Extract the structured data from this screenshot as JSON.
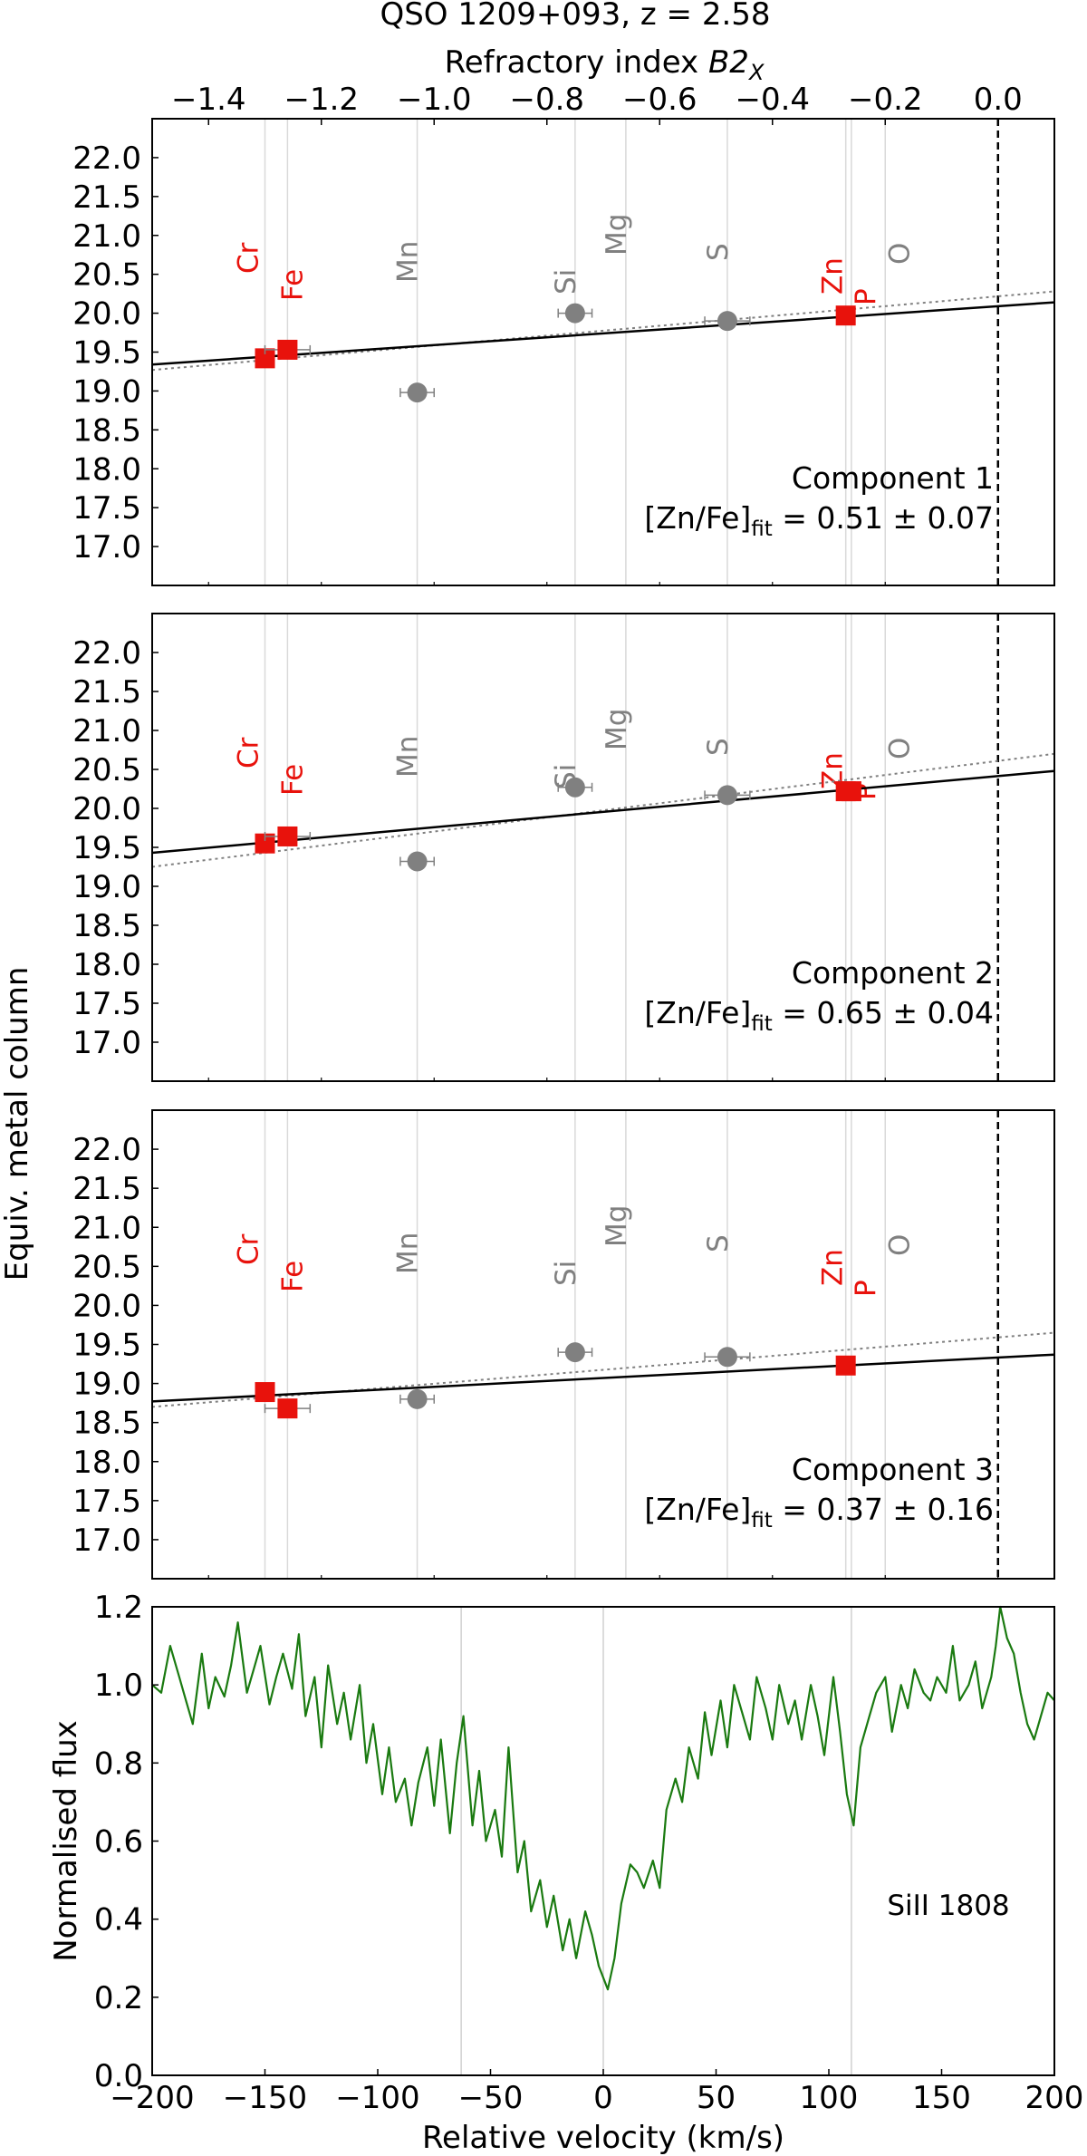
{
  "figure": {
    "title": "QSO 1209+093, z = 2.58",
    "top_axis_label_prefix": "Refractory index ",
    "top_axis_label_var": "B2",
    "top_axis_label_sub": "X",
    "shared_ylabel": "Equiv. metal column"
  },
  "chart_data": [
    {
      "type": "scatter",
      "panel": "Component 1",
      "xlim": [
        -1.5,
        0.1
      ],
      "ylim": [
        16.5,
        22.5
      ],
      "x_ticks": [
        -1.4,
        -1.2,
        -1.0,
        -0.8,
        -0.6,
        -0.4,
        -0.2,
        0.0
      ],
      "x_tick_labels": [
        "−1.4",
        "−1.2",
        "−1.0",
        "−0.8",
        "−0.6",
        "−0.4",
        "−0.2",
        "0.0"
      ],
      "y_ticks": [
        17.0,
        17.5,
        18.0,
        18.5,
        19.0,
        19.5,
        20.0,
        20.5,
        21.0,
        21.5,
        22.0
      ],
      "y_tick_labels": [
        "17.0",
        "17.5",
        "18.0",
        "18.5",
        "19.0",
        "19.5",
        "20.0",
        "20.5",
        "21.0",
        "21.5",
        "22.0"
      ],
      "element_lines": [
        {
          "name": "Cr",
          "x": -1.3,
          "color": "#e8120c"
        },
        {
          "name": "Fe",
          "x": -1.26,
          "color": "#e8120c"
        },
        {
          "name": "Mn",
          "x": -1.03,
          "color": "#808080"
        },
        {
          "name": "Si",
          "x": -0.75,
          "color": "#808080"
        },
        {
          "name": "Mg",
          "x": -0.66,
          "color": "#808080"
        },
        {
          "name": "S",
          "x": -0.48,
          "color": "#808080"
        },
        {
          "name": "Zn",
          "x": -0.27,
          "color": "#e8120c"
        },
        {
          "name": "P",
          "x": -0.26,
          "color": "#e8120c"
        },
        {
          "name": "O",
          "x": -0.2,
          "color": "#808080"
        }
      ],
      "points": [
        {
          "element": "Cr",
          "x": -1.3,
          "y": 19.42,
          "xerr": 0.0,
          "marker": "square",
          "color": "#e8120c"
        },
        {
          "element": "Fe",
          "x": -1.26,
          "y": 19.53,
          "xerr": 0.04,
          "marker": "square",
          "color": "#e8120c"
        },
        {
          "element": "Mn",
          "x": -1.03,
          "y": 18.98,
          "xerr": 0.03,
          "marker": "circle",
          "color": "#808080"
        },
        {
          "element": "Si",
          "x": -0.75,
          "y": 20.0,
          "xerr": 0.03,
          "marker": "circle",
          "color": "#808080"
        },
        {
          "element": "S",
          "x": -0.48,
          "y": 19.9,
          "xerr": 0.04,
          "marker": "circle",
          "color": "#808080"
        },
        {
          "element": "Zn",
          "x": -0.27,
          "y": 19.97,
          "xerr": 0.0,
          "marker": "square",
          "color": "#e8120c"
        }
      ],
      "fit_line": {
        "x": [
          -1.5,
          0.1
        ],
        "y": [
          19.34,
          20.14
        ]
      },
      "dotted_line": {
        "x": [
          -1.5,
          0.1
        ],
        "y": [
          19.27,
          20.28
        ]
      },
      "annotation": {
        "title": "Component 1",
        "text_prefix": "[Zn/Fe]",
        "text_sub": "fit",
        "text_value": " = 0.51 ± 0.07"
      }
    },
    {
      "type": "scatter",
      "panel": "Component 2",
      "xlim": [
        -1.5,
        0.1
      ],
      "ylim": [
        16.5,
        22.5
      ],
      "x_ticks": [
        -1.4,
        -1.2,
        -1.0,
        -0.8,
        -0.6,
        -0.4,
        -0.2,
        0.0
      ],
      "y_ticks": [
        17.0,
        17.5,
        18.0,
        18.5,
        19.0,
        19.5,
        20.0,
        20.5,
        21.0,
        21.5,
        22.0
      ],
      "y_tick_labels": [
        "17.0",
        "17.5",
        "18.0",
        "18.5",
        "19.0",
        "19.5",
        "20.0",
        "20.5",
        "21.0",
        "21.5",
        "22.0"
      ],
      "element_lines": [
        {
          "name": "Cr",
          "x": -1.3,
          "color": "#e8120c"
        },
        {
          "name": "Fe",
          "x": -1.26,
          "color": "#e8120c"
        },
        {
          "name": "Mn",
          "x": -1.03,
          "color": "#808080"
        },
        {
          "name": "Si",
          "x": -0.75,
          "color": "#808080"
        },
        {
          "name": "Mg",
          "x": -0.66,
          "color": "#808080"
        },
        {
          "name": "S",
          "x": -0.48,
          "color": "#808080"
        },
        {
          "name": "Zn",
          "x": -0.27,
          "color": "#e8120c"
        },
        {
          "name": "P",
          "x": -0.26,
          "color": "#e8120c"
        },
        {
          "name": "O",
          "x": -0.2,
          "color": "#808080"
        }
      ],
      "points": [
        {
          "element": "Cr",
          "x": -1.3,
          "y": 19.55,
          "xerr": 0.0,
          "marker": "square",
          "color": "#e8120c"
        },
        {
          "element": "Fe",
          "x": -1.26,
          "y": 19.64,
          "xerr": 0.04,
          "marker": "square",
          "color": "#e8120c"
        },
        {
          "element": "Mn",
          "x": -1.03,
          "y": 19.32,
          "xerr": 0.03,
          "marker": "circle",
          "color": "#808080"
        },
        {
          "element": "Si",
          "x": -0.75,
          "y": 20.27,
          "xerr": 0.03,
          "marker": "circle",
          "color": "#808080"
        },
        {
          "element": "S",
          "x": -0.48,
          "y": 20.17,
          "xerr": 0.04,
          "marker": "circle",
          "color": "#808080"
        },
        {
          "element": "Zn",
          "x": -0.27,
          "y": 20.22,
          "xerr": 0.0,
          "marker": "square",
          "color": "#e8120c"
        },
        {
          "element": "P",
          "x": -0.26,
          "y": 20.22,
          "xerr": 0.0,
          "marker": "square",
          "color": "#e8120c"
        }
      ],
      "fit_line": {
        "x": [
          -1.5,
          0.1
        ],
        "y": [
          19.43,
          20.48
        ]
      },
      "dotted_line": {
        "x": [
          -1.5,
          0.1
        ],
        "y": [
          19.25,
          20.7
        ]
      },
      "annotation": {
        "title": "Component 2",
        "text_prefix": "[Zn/Fe]",
        "text_sub": "fit",
        "text_value": " = 0.65 ± 0.04"
      }
    },
    {
      "type": "scatter",
      "panel": "Component 3",
      "xlim": [
        -1.5,
        0.1
      ],
      "ylim": [
        16.5,
        22.5
      ],
      "x_ticks": [
        -1.4,
        -1.2,
        -1.0,
        -0.8,
        -0.6,
        -0.4,
        -0.2,
        0.0
      ],
      "y_ticks": [
        17.0,
        17.5,
        18.0,
        18.5,
        19.0,
        19.5,
        20.0,
        20.5,
        21.0,
        21.5,
        22.0
      ],
      "y_tick_labels": [
        "17.0",
        "17.5",
        "18.0",
        "18.5",
        "19.0",
        "19.5",
        "20.0",
        "20.5",
        "21.0",
        "21.5",
        "22.0"
      ],
      "element_lines": [
        {
          "name": "Cr",
          "x": -1.3,
          "color": "#e8120c"
        },
        {
          "name": "Fe",
          "x": -1.26,
          "color": "#e8120c"
        },
        {
          "name": "Mn",
          "x": -1.03,
          "color": "#808080"
        },
        {
          "name": "Si",
          "x": -0.75,
          "color": "#808080"
        },
        {
          "name": "Mg",
          "x": -0.66,
          "color": "#808080"
        },
        {
          "name": "S",
          "x": -0.48,
          "color": "#808080"
        },
        {
          "name": "Zn",
          "x": -0.27,
          "color": "#e8120c"
        },
        {
          "name": "P",
          "x": -0.26,
          "color": "#e8120c"
        },
        {
          "name": "O",
          "x": -0.2,
          "color": "#808080"
        }
      ],
      "points": [
        {
          "element": "Cr",
          "x": -1.3,
          "y": 18.89,
          "xerr": 0.0,
          "marker": "square",
          "color": "#e8120c"
        },
        {
          "element": "Fe",
          "x": -1.26,
          "y": 18.68,
          "xerr": 0.04,
          "marker": "square",
          "color": "#e8120c"
        },
        {
          "element": "Mn",
          "x": -1.03,
          "y": 18.8,
          "xerr": 0.03,
          "marker": "circle",
          "color": "#808080"
        },
        {
          "element": "Si",
          "x": -0.75,
          "y": 19.4,
          "xerr": 0.03,
          "marker": "circle",
          "color": "#808080"
        },
        {
          "element": "S",
          "x": -0.48,
          "y": 19.34,
          "xerr": 0.04,
          "marker": "circle",
          "color": "#808080"
        },
        {
          "element": "Zn",
          "x": -0.27,
          "y": 19.23,
          "xerr": 0.0,
          "marker": "square",
          "color": "#e8120c"
        }
      ],
      "fit_line": {
        "x": [
          -1.5,
          0.1
        ],
        "y": [
          18.77,
          19.37
        ]
      },
      "dotted_line": {
        "x": [
          -1.5,
          0.1
        ],
        "y": [
          18.7,
          19.65
        ]
      },
      "annotation": {
        "title": "Component 3",
        "text_prefix": "[Zn/Fe]",
        "text_sub": "fit",
        "text_value": " = 0.37 ± 0.16"
      }
    },
    {
      "type": "line",
      "panel": "SiII 1808",
      "label": "SiII 1808",
      "xlabel": "Relative velocity (km/s)",
      "ylabel": "Normalised flux",
      "xlim": [
        -200,
        200
      ],
      "ylim": [
        0.0,
        1.2
      ],
      "x_ticks": [
        -200,
        -150,
        -100,
        -50,
        0,
        50,
        100,
        150,
        200
      ],
      "x_tick_labels": [
        "−200",
        "−150",
        "−100",
        "−50",
        "0",
        "50",
        "100",
        "150",
        "200"
      ],
      "y_ticks": [
        0.0,
        0.2,
        0.4,
        0.6,
        0.8,
        1.0,
        1.2
      ],
      "y_tick_labels": [
        "0.0",
        "0.2",
        "0.4",
        "0.6",
        "0.8",
        "1.0",
        "1.2"
      ],
      "component_lines": [
        -63,
        0,
        110
      ],
      "color": "#1a7a10",
      "x": [
        -200,
        -196,
        -192,
        -188,
        -185,
        -182,
        -178,
        -175,
        -172,
        -168,
        -165,
        -162,
        -158,
        -155,
        -152,
        -148,
        -145,
        -142,
        -138,
        -135,
        -132,
        -128,
        -125,
        -122,
        -118,
        -115,
        -112,
        -108,
        -105,
        -102,
        -98,
        -95,
        -92,
        -88,
        -85,
        -82,
        -78,
        -75,
        -72,
        -68,
        -65,
        -62,
        -58,
        -55,
        -52,
        -48,
        -45,
        -42,
        -38,
        -35,
        -32,
        -28,
        -25,
        -22,
        -18,
        -15,
        -12,
        -8,
        -5,
        -2,
        2,
        5,
        8,
        12,
        15,
        18,
        22,
        25,
        28,
        32,
        35,
        38,
        42,
        45,
        48,
        52,
        55,
        58,
        62,
        65,
        68,
        72,
        75,
        78,
        82,
        85,
        88,
        92,
        95,
        98,
        102,
        105,
        108,
        111,
        114,
        118,
        121,
        125,
        128,
        132,
        135,
        138,
        142,
        145,
        148,
        152,
        155,
        158,
        162,
        165,
        168,
        172,
        174,
        176,
        179,
        182,
        185,
        188,
        191,
        194,
        197,
        200
      ],
      "y": [
        1.0,
        0.98,
        1.1,
        1.02,
        0.96,
        0.9,
        1.08,
        0.94,
        1.02,
        0.97,
        1.05,
        1.16,
        0.98,
        1.04,
        1.1,
        0.95,
        1.02,
        1.08,
        0.99,
        1.13,
        0.92,
        1.02,
        0.84,
        1.05,
        0.9,
        0.98,
        0.86,
        1.0,
        0.8,
        0.9,
        0.72,
        0.84,
        0.7,
        0.76,
        0.64,
        0.75,
        0.84,
        0.69,
        0.86,
        0.62,
        0.8,
        0.92,
        0.64,
        0.78,
        0.6,
        0.68,
        0.56,
        0.84,
        0.52,
        0.6,
        0.42,
        0.5,
        0.38,
        0.46,
        0.32,
        0.4,
        0.3,
        0.42,
        0.36,
        0.28,
        0.22,
        0.3,
        0.44,
        0.54,
        0.52,
        0.48,
        0.55,
        0.48,
        0.68,
        0.76,
        0.7,
        0.84,
        0.76,
        0.93,
        0.82,
        0.96,
        0.84,
        1.0,
        0.92,
        0.86,
        1.02,
        0.94,
        0.86,
        1.0,
        0.9,
        0.96,
        0.86,
        1.0,
        0.92,
        0.82,
        1.02,
        0.88,
        0.72,
        0.64,
        0.84,
        0.92,
        0.98,
        1.02,
        0.88,
        1.0,
        0.94,
        1.04,
        0.98,
        0.96,
        1.02,
        0.98,
        1.1,
        0.96,
        1.0,
        1.06,
        0.94,
        1.02,
        1.1,
        1.22,
        1.12,
        1.08,
        0.98,
        0.9,
        0.86,
        0.92,
        0.98,
        0.96
      ]
    }
  ]
}
